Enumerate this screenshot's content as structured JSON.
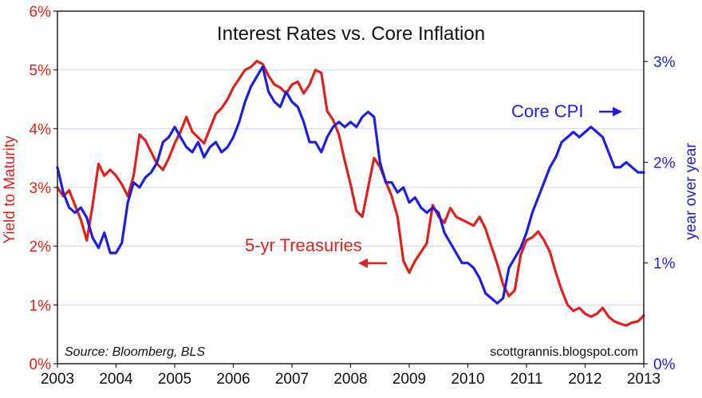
{
  "chart_data": {
    "type": "line",
    "title": "Interest Rates vs. Core Inflation",
    "ylabel_left": "Yield to Maturity",
    "ylabel_right": "year over year",
    "ylim_left": [
      0,
      6
    ],
    "ylim_right": [
      0,
      3.5
    ],
    "xlim": [
      2003,
      2013
    ],
    "x_ticks": [
      2003,
      2004,
      2005,
      2006,
      2007,
      2008,
      2009,
      2010,
      2011,
      2012,
      2013
    ],
    "x_tick_labels": [
      "2003",
      "2004",
      "2005",
      "2006",
      "2007",
      "2008",
      "2009",
      "2010",
      "2011",
      "2012",
      "2013"
    ],
    "y_left_ticks": [
      0,
      1,
      2,
      3,
      4,
      5,
      6
    ],
    "y_left_tick_labels": [
      "0%",
      "1%",
      "2%",
      "3%",
      "4%",
      "5%",
      "6%"
    ],
    "y_right_ticks": [
      0,
      1,
      2,
      3
    ],
    "y_right_tick_labels": [
      "0%",
      "1%",
      "2%",
      "3%"
    ],
    "grid": true,
    "source": "Source: Bloomberg, BLS",
    "credit": "scottgrannis.blogspot.com",
    "annotations": [
      {
        "text": "5-yr Treasuries",
        "color": "#e0201b",
        "arrow": "left"
      },
      {
        "text": "Core CPI",
        "color": "#1e1ee0",
        "arrow": "right"
      }
    ],
    "series": [
      {
        "name": "5-yr Treasuries",
        "axis": "left",
        "color": "#e0201b",
        "x": [
          2003.0,
          2003.1,
          2003.2,
          2003.3,
          2003.4,
          2003.5,
          2003.6,
          2003.7,
          2003.8,
          2003.9,
          2004.0,
          2004.1,
          2004.2,
          2004.3,
          2004.4,
          2004.5,
          2004.6,
          2004.7,
          2004.8,
          2004.9,
          2005.0,
          2005.1,
          2005.2,
          2005.3,
          2005.4,
          2005.5,
          2005.6,
          2005.7,
          2005.8,
          2005.9,
          2006.0,
          2006.1,
          2006.2,
          2006.3,
          2006.4,
          2006.5,
          2006.6,
          2006.7,
          2006.8,
          2006.9,
          2007.0,
          2007.1,
          2007.2,
          2007.3,
          2007.4,
          2007.5,
          2007.6,
          2007.7,
          2007.8,
          2007.9,
          2008.0,
          2008.1,
          2008.2,
          2008.3,
          2008.4,
          2008.5,
          2008.6,
          2008.7,
          2008.8,
          2008.9,
          2009.0,
          2009.1,
          2009.2,
          2009.3,
          2009.4,
          2009.5,
          2009.6,
          2009.7,
          2009.8,
          2009.9,
          2010.0,
          2010.1,
          2010.2,
          2010.3,
          2010.4,
          2010.5,
          2010.6,
          2010.7,
          2010.8,
          2010.9,
          2011.0,
          2011.1,
          2011.2,
          2011.3,
          2011.4,
          2011.5,
          2011.6,
          2011.7,
          2011.8,
          2011.9,
          2012.0,
          2012.1,
          2012.2,
          2012.3,
          2012.4,
          2012.5,
          2012.6,
          2012.7,
          2012.8,
          2012.9,
          2013.0
        ],
        "values": [
          3.0,
          2.85,
          2.95,
          2.7,
          2.45,
          2.1,
          2.7,
          3.4,
          3.2,
          3.3,
          3.2,
          3.05,
          2.85,
          3.2,
          3.9,
          3.8,
          3.6,
          3.4,
          3.3,
          3.5,
          3.75,
          3.95,
          4.2,
          3.95,
          3.85,
          3.75,
          4.0,
          4.25,
          4.35,
          4.5,
          4.7,
          4.85,
          5.0,
          5.05,
          5.15,
          5.1,
          4.9,
          4.75,
          4.7,
          4.6,
          4.75,
          4.8,
          4.6,
          4.75,
          5.0,
          4.95,
          4.3,
          4.15,
          3.9,
          3.45,
          3.05,
          2.6,
          2.5,
          3.0,
          3.5,
          3.35,
          3.1,
          2.85,
          2.5,
          1.75,
          1.55,
          1.75,
          1.9,
          2.05,
          2.7,
          2.5,
          2.4,
          2.65,
          2.5,
          2.45,
          2.4,
          2.35,
          2.5,
          2.3,
          2.0,
          1.7,
          1.35,
          1.15,
          1.25,
          1.85,
          2.1,
          2.15,
          2.25,
          2.1,
          1.9,
          1.55,
          1.25,
          1.0,
          0.9,
          0.95,
          0.85,
          0.8,
          0.85,
          0.95,
          0.8,
          0.72,
          0.68,
          0.65,
          0.7,
          0.72,
          0.82
        ]
      },
      {
        "name": "Core CPI",
        "axis": "right",
        "color": "#1e1ee0",
        "x": [
          2003.0,
          2003.1,
          2003.2,
          2003.3,
          2003.4,
          2003.5,
          2003.6,
          2003.7,
          2003.8,
          2003.9,
          2004.0,
          2004.1,
          2004.2,
          2004.3,
          2004.4,
          2004.5,
          2004.6,
          2004.7,
          2004.8,
          2004.9,
          2005.0,
          2005.1,
          2005.2,
          2005.3,
          2005.4,
          2005.5,
          2005.6,
          2005.7,
          2005.8,
          2005.9,
          2006.0,
          2006.1,
          2006.2,
          2006.3,
          2006.4,
          2006.5,
          2006.6,
          2006.7,
          2006.8,
          2006.9,
          2007.0,
          2007.1,
          2007.2,
          2007.3,
          2007.4,
          2007.5,
          2007.6,
          2007.7,
          2007.8,
          2007.9,
          2008.0,
          2008.1,
          2008.2,
          2008.3,
          2008.4,
          2008.5,
          2008.6,
          2008.7,
          2008.8,
          2008.9,
          2009.0,
          2009.1,
          2009.2,
          2009.3,
          2009.4,
          2009.5,
          2009.6,
          2009.7,
          2009.8,
          2009.9,
          2010.0,
          2010.1,
          2010.2,
          2010.3,
          2010.4,
          2010.5,
          2010.6,
          2010.7,
          2010.8,
          2010.9,
          2011.0,
          2011.1,
          2011.2,
          2011.3,
          2011.4,
          2011.5,
          2011.6,
          2011.7,
          2011.8,
          2011.9,
          2012.0,
          2012.1,
          2012.2,
          2012.3,
          2012.4,
          2012.5,
          2012.6,
          2012.7,
          2012.8,
          2012.9,
          2013.0
        ],
        "values": [
          1.95,
          1.7,
          1.55,
          1.5,
          1.55,
          1.45,
          1.25,
          1.15,
          1.3,
          1.1,
          1.1,
          1.2,
          1.6,
          1.8,
          1.75,
          1.85,
          1.9,
          2.0,
          2.2,
          2.25,
          2.35,
          2.25,
          2.15,
          2.1,
          2.2,
          2.05,
          2.15,
          2.2,
          2.1,
          2.15,
          2.25,
          2.4,
          2.6,
          2.75,
          2.85,
          2.95,
          2.7,
          2.6,
          2.55,
          2.7,
          2.6,
          2.55,
          2.4,
          2.2,
          2.2,
          2.1,
          2.25,
          2.35,
          2.4,
          2.35,
          2.4,
          2.35,
          2.45,
          2.5,
          2.45,
          2.0,
          1.8,
          1.8,
          1.7,
          1.75,
          1.6,
          1.65,
          1.55,
          1.5,
          1.55,
          1.5,
          1.3,
          1.2,
          1.1,
          1.0,
          1.0,
          0.95,
          0.85,
          0.7,
          0.65,
          0.6,
          0.65,
          0.95,
          1.05,
          1.15,
          1.3,
          1.5,
          1.65,
          1.8,
          1.95,
          2.05,
          2.2,
          2.25,
          2.3,
          2.25,
          2.3,
          2.35,
          2.3,
          2.25,
          2.1,
          1.95,
          1.95,
          2.0,
          1.95,
          1.9,
          1.9
        ]
      }
    ]
  }
}
